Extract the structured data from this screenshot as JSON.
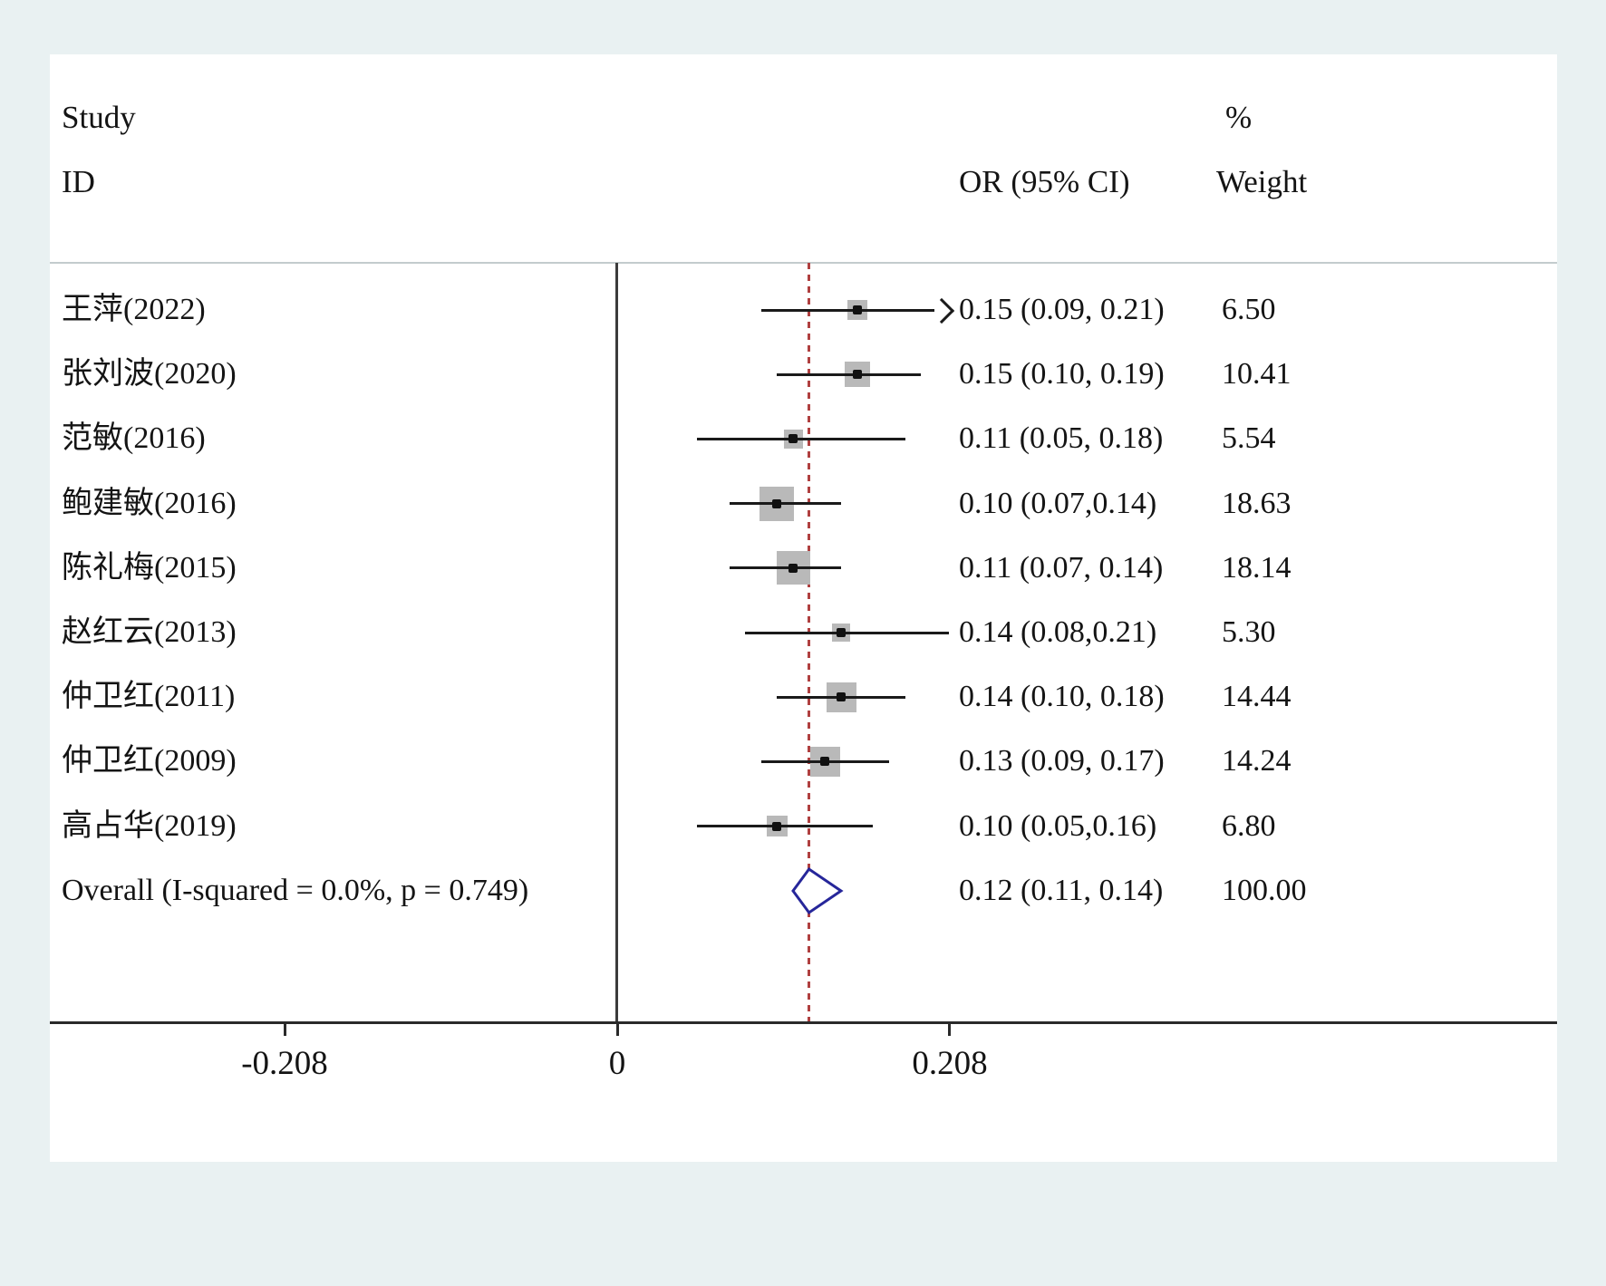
{
  "chart_data": {
    "type": "forest",
    "title": "",
    "header": {
      "study_line1": "Study",
      "study_line2": "ID",
      "or_col": "OR (95% CI)",
      "weight_line1": "%",
      "weight_line2": "Weight"
    },
    "x_axis": {
      "ticks": [
        -0.208,
        0,
        0.208
      ],
      "tick_labels": [
        "-0.208",
        "0",
        "0.208"
      ],
      "null_line": 0
    },
    "studies": [
      {
        "label": "王萍(2022)",
        "or": 0.15,
        "ci_low": 0.09,
        "ci_high": 0.21,
        "or_text": "0.15 (0.09, 0.21)",
        "weight": 6.5,
        "weight_text": "6.50",
        "arrow_right": true
      },
      {
        "label": "张刘波(2020)",
        "or": 0.15,
        "ci_low": 0.1,
        "ci_high": 0.19,
        "or_text": "0.15 (0.10, 0.19)",
        "weight": 10.41,
        "weight_text": "10.41",
        "arrow_right": false
      },
      {
        "label": "范敏(2016)",
        "or": 0.11,
        "ci_low": 0.05,
        "ci_high": 0.18,
        "or_text": "0.11 (0.05, 0.18)",
        "weight": 5.54,
        "weight_text": "5.54",
        "arrow_right": false
      },
      {
        "label": "鲍建敏(2016)",
        "or": 0.1,
        "ci_low": 0.07,
        "ci_high": 0.14,
        "or_text": "0.10 (0.07,0.14)",
        "weight": 18.63,
        "weight_text": "18.63",
        "arrow_right": false
      },
      {
        "label": "陈礼梅(2015)",
        "or": 0.11,
        "ci_low": 0.07,
        "ci_high": 0.14,
        "or_text": "0.11 (0.07, 0.14)",
        "weight": 18.14,
        "weight_text": "18.14",
        "arrow_right": false
      },
      {
        "label": "赵红云(2013)",
        "or": 0.14,
        "ci_low": 0.08,
        "ci_high": 0.21,
        "or_text": "0.14 (0.08,0.21)",
        "weight": 5.3,
        "weight_text": "5.30",
        "arrow_right": false
      },
      {
        "label": "仲卫红(2011)",
        "or": 0.14,
        "ci_low": 0.1,
        "ci_high": 0.18,
        "or_text": "0.14 (0.10, 0.18)",
        "weight": 14.44,
        "weight_text": "14.44",
        "arrow_right": false
      },
      {
        "label": "仲卫红(2009)",
        "or": 0.13,
        "ci_low": 0.09,
        "ci_high": 0.17,
        "or_text": "0.13 (0.09, 0.17)",
        "weight": 14.24,
        "weight_text": "14.24",
        "arrow_right": false
      },
      {
        "label": "高占华(2019)",
        "or": 0.1,
        "ci_low": 0.05,
        "ci_high": 0.16,
        "or_text": "0.10 (0.05,0.16)",
        "weight": 6.8,
        "weight_text": "6.80",
        "arrow_right": false
      }
    ],
    "overall": {
      "label": "Overall (I-squared = 0.0%, p = 0.749)",
      "or": 0.12,
      "ci_low": 0.11,
      "ci_high": 0.14,
      "or_text": "0.12 (0.11, 0.14)",
      "weight_text": "100.00"
    },
    "colors": {
      "background": "#e9f1f2",
      "plot_background": "#ffffff",
      "ci_line": "#1a1a1a",
      "weight_box": "#b9b9b9",
      "point": "#111111",
      "null_line": "#3c3c3c",
      "overall_dashed": "#b04040",
      "diamond_stroke": "#26269a",
      "diamond_fill": "#ffffff"
    }
  }
}
